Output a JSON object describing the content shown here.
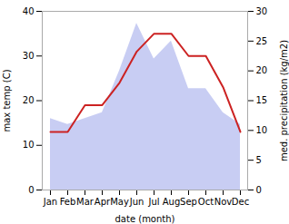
{
  "chart_data": {
    "type": "line",
    "xlabel": "date (month)",
    "ylabel": "max temp (C)",
    "y2label": "med. precipitation (kg/m2)",
    "categories": [
      "Jan",
      "Feb",
      "Mar",
      "Apr",
      "May",
      "Jun",
      "Jul",
      "Aug",
      "Sep",
      "Oct",
      "Nov",
      "Dec"
    ],
    "series": [
      {
        "type": "area",
        "axis": "y2",
        "color": "#b0b8ee",
        "values": [
          12,
          11,
          12,
          13,
          20,
          28,
          22,
          25,
          17,
          17,
          13,
          11
        ]
      },
      {
        "type": "line",
        "color": "#cc2222",
        "values": [
          13,
          13,
          19,
          19,
          24,
          31,
          35,
          35,
          30,
          30,
          23,
          13
        ]
      }
    ],
    "ylim": [
      0,
      40
    ],
    "yticks": [
      0,
      10,
      20,
      30,
      40
    ],
    "y2lim": [
      0,
      30
    ],
    "y2ticks": [
      0,
      5,
      10,
      15,
      20,
      25,
      30
    ],
    "grid": false
  }
}
